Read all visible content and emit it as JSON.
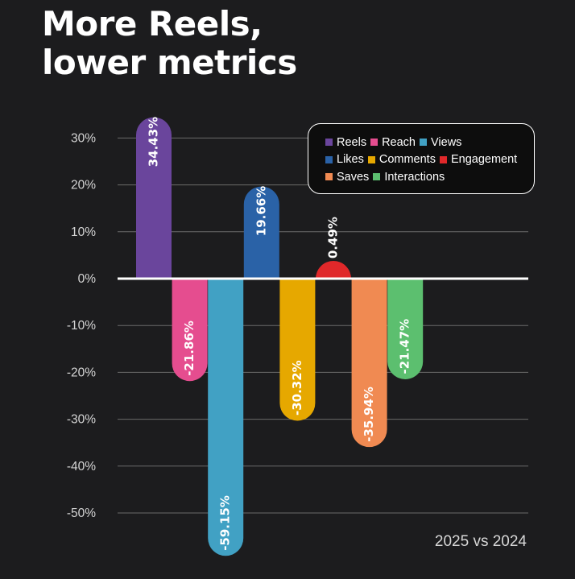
{
  "header": {
    "title_line1": "More Reels,",
    "title_line2": "lower metrics"
  },
  "subtitle": "2025 vs 2024",
  "chart_data": {
    "type": "bar",
    "title": "More Reels, lower metrics",
    "subtitle": "2025 vs 2024",
    "categories": [
      "Reels",
      "Reach",
      "Views",
      "Likes",
      "Comments",
      "Engagement",
      "Saves",
      "Interactions"
    ],
    "values": [
      34.43,
      -21.86,
      -59.15,
      19.66,
      -30.32,
      0.49,
      -35.94,
      -21.47
    ],
    "value_labels": [
      "34.43%",
      "-21.86%",
      "-59.15%",
      "19.66%",
      "-30.32%",
      "0.49%",
      "-35.94%",
      "-21.47%"
    ],
    "colors": [
      "#6a459c",
      "#e54d8f",
      "#41a1c4",
      "#2a62a7",
      "#e6a800",
      "#e0282a",
      "#f08a52",
      "#5cbf6f"
    ],
    "yticks": [
      30,
      20,
      10,
      0,
      -10,
      -20,
      -30,
      -40,
      -50
    ],
    "ytick_labels": [
      "30%",
      "20%",
      "10%",
      "0%",
      "-10%",
      "-20%",
      "-30%",
      "-40%",
      "-50%"
    ],
    "ylim": [
      -60,
      35
    ],
    "grid": true,
    "legend_position": "top-right",
    "xlabel": "",
    "ylabel": ""
  }
}
